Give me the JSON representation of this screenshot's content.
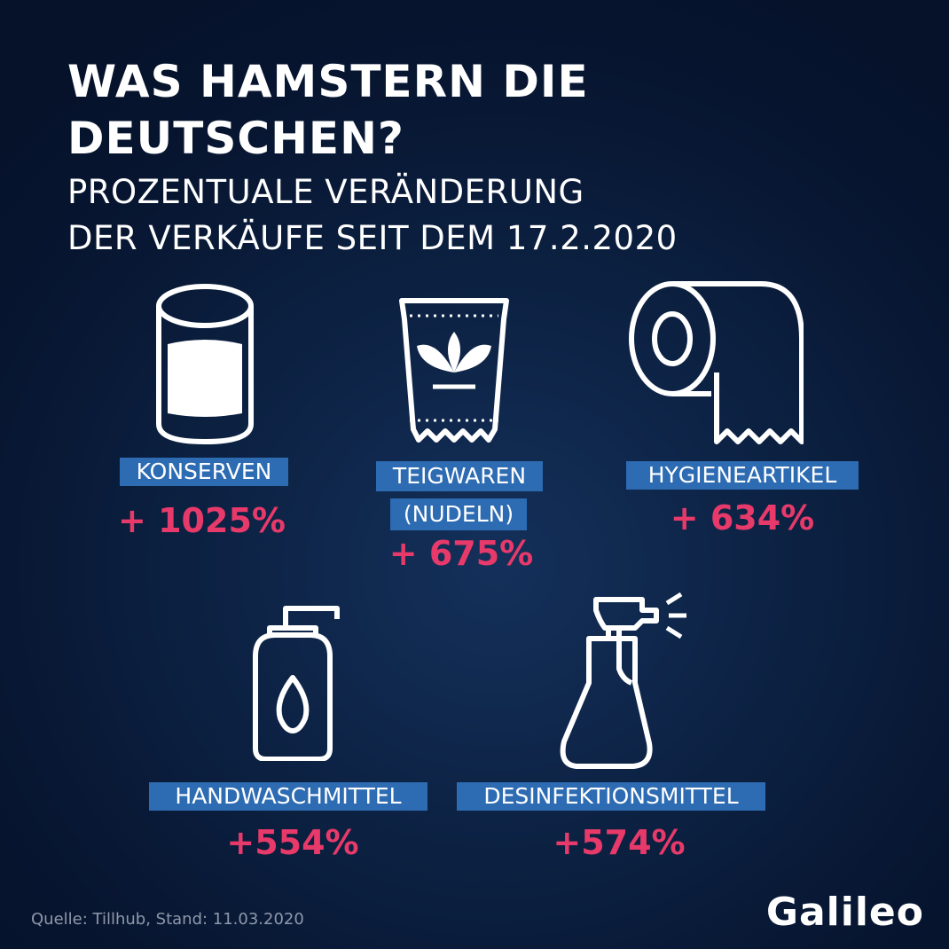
{
  "title": "WAS HAMSTERN DIE DEUTSCHEN?",
  "subtitle_line1": "PROZENTUALE VERÄNDERUNG",
  "subtitle_line2": "DER VERKÄUFE SEIT DEM 17.2.2020",
  "accent_color": "#e83a6a",
  "label_color": "#2d6bb3",
  "items": [
    {
      "icon": "can-icon",
      "label": "KONSERVEN",
      "value": "+ 1025%"
    },
    {
      "icon": "pasta-bag-icon",
      "label_line1": "TEIGWAREN",
      "label_line2": "(NUDELN)",
      "value": "+ 675%"
    },
    {
      "icon": "toilet-paper-icon",
      "label": "HYGIENEARTIKEL",
      "value": "+ 634%"
    },
    {
      "icon": "soap-dispenser-icon",
      "label": "HANDWASCHMITTEL",
      "value": "+554%"
    },
    {
      "icon": "spray-bottle-icon",
      "label": "DESINFEKTIONSMITTEL",
      "value": "+574%"
    }
  ],
  "source": "Quelle: Tillhub, Stand: 11.03.2020",
  "logo": "Galileo"
}
